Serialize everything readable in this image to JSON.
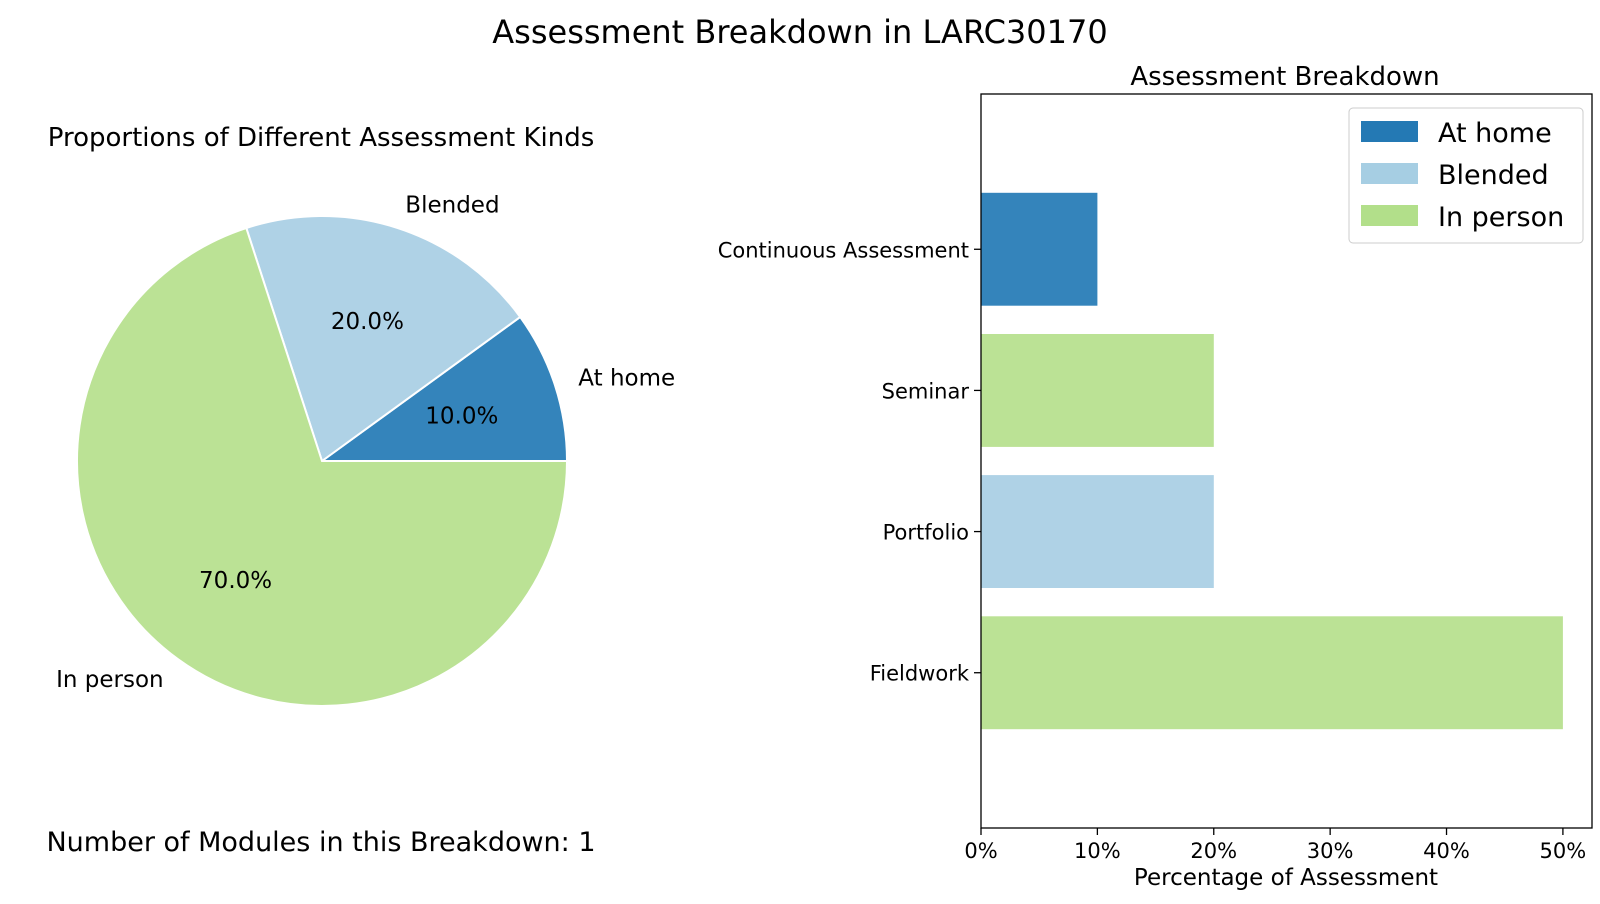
{
  "figure": {
    "title": "Assessment Breakdown in LARC30170",
    "footer": "Number of Modules in this Breakdown: 1"
  },
  "chart_data": [
    {
      "type": "pie",
      "title": "Proportions of Different Assessment Kinds",
      "slices": [
        {
          "label": "At home",
          "value": 10.0,
          "pct_label": "10.0%",
          "color": "#3484bb"
        },
        {
          "label": "Blended",
          "value": 20.0,
          "pct_label": "20.0%",
          "color": "#afd2e6"
        },
        {
          "label": "In person",
          "value": 70.0,
          "pct_label": "70.0%",
          "color": "#bbe295"
        }
      ],
      "start_angle_deg": 0,
      "direction": "counterclockwise",
      "edge_color": "#ffffff"
    },
    {
      "type": "bar",
      "orientation": "horizontal",
      "title": "Assessment Breakdown",
      "xlabel": "Percentage of Assessment",
      "ylabel": "",
      "xlim": [
        0,
        52.5
      ],
      "x_ticks": [
        {
          "value": 0,
          "label": "0%"
        },
        {
          "value": 10,
          "label": "10%"
        },
        {
          "value": 20,
          "label": "20%"
        },
        {
          "value": 30,
          "label": "30%"
        },
        {
          "value": 40,
          "label": "40%"
        },
        {
          "value": 50,
          "label": "50%"
        }
      ],
      "categories": [
        "Continuous Assessment",
        "Seminar",
        "Portfolio",
        "Fieldwork"
      ],
      "bars": [
        {
          "category": "Continuous Assessment",
          "value": 10,
          "kind": "At home"
        },
        {
          "category": "Seminar",
          "value": 20,
          "kind": "In person"
        },
        {
          "category": "Portfolio",
          "value": 20,
          "kind": "Blended"
        },
        {
          "category": "Fieldwork",
          "value": 50,
          "kind": "In person"
        }
      ],
      "kind_colors": {
        "At home": "#3484bb",
        "Blended": "#afd2e6",
        "In person": "#bbe295"
      },
      "legend": {
        "placement": "top-right",
        "entries": [
          {
            "label": "At home",
            "color": "#2479b4"
          },
          {
            "label": "Blended",
            "color": "#a6cee3"
          },
          {
            "label": "In person",
            "color": "#b2df8a"
          }
        ]
      },
      "grid": false
    }
  ]
}
